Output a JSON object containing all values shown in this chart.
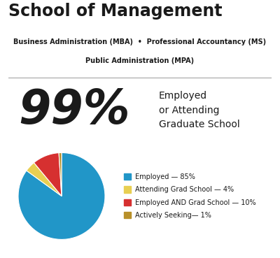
{
  "title": "School of Management",
  "subtitle_line1": "Business Administration (MBA)  •  Professional Accountancy (MS)",
  "subtitle_line2": "Public Administration (MPA)",
  "big_percent": "99%",
  "big_percent_label": "Employed\nor Attending\nGraduate School",
  "pie_values": [
    85,
    4,
    10,
    1
  ],
  "pie_colors": [
    "#2196c8",
    "#e8cf52",
    "#d63030",
    "#b8902a"
  ],
  "legend_labels": [
    "Employed — 85%",
    "Attending Grad School — 4%",
    "Employed AND Grad School — 10%",
    "Actively Seeking— 1%"
  ],
  "background_color": "#ffffff",
  "text_color": "#1a1a1a",
  "divider_color": "#999999",
  "title_fontsize": 17,
  "subtitle_fontsize": 7,
  "percent_fontsize": 48,
  "label_fontsize": 10,
  "legend_fontsize": 7
}
